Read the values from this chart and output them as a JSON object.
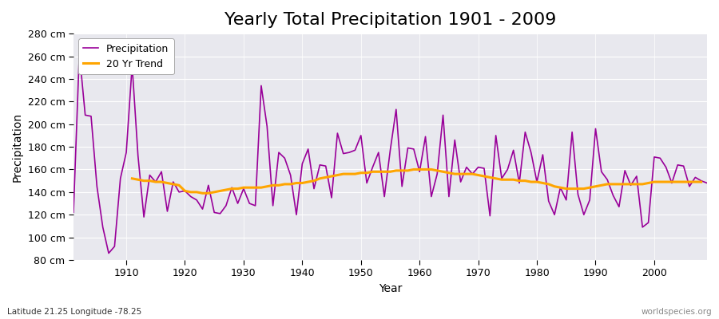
{
  "title": "Yearly Total Precipitation 1901 - 2009",
  "xlabel": "Year",
  "ylabel": "Precipitation",
  "subtitle": "Latitude 21.25 Longitude -78.25",
  "watermark": "worldspecies.org",
  "ylim": [
    80,
    280
  ],
  "yticks": [
    80,
    100,
    120,
    140,
    160,
    180,
    200,
    220,
    240,
    260,
    280
  ],
  "ytick_labels": [
    "80 cm",
    "100 cm",
    "120 cm",
    "140 cm",
    "160 cm",
    "180 cm",
    "200 cm",
    "220 cm",
    "240 cm",
    "260 cm",
    "280 cm"
  ],
  "xlim": [
    1901,
    2009
  ],
  "xticks": [
    1910,
    1920,
    1930,
    1940,
    1950,
    1960,
    1970,
    1980,
    1990,
    2000
  ],
  "precip_color": "#990099",
  "trend_color": "#FFA500",
  "fig_bg_color": "#FFFFFF",
  "plot_bg_color": "#E8E8EE",
  "grid_color": "#FFFFFF",
  "legend_labels": [
    "Precipitation",
    "20 Yr Trend"
  ],
  "title_fontsize": 16,
  "label_fontsize": 10,
  "tick_fontsize": 9,
  "years": [
    1901,
    1902,
    1903,
    1904,
    1905,
    1906,
    1907,
    1908,
    1909,
    1910,
    1911,
    1912,
    1913,
    1914,
    1915,
    1916,
    1917,
    1918,
    1919,
    1920,
    1921,
    1922,
    1923,
    1924,
    1925,
    1926,
    1927,
    1928,
    1929,
    1930,
    1931,
    1932,
    1933,
    1934,
    1935,
    1936,
    1937,
    1938,
    1939,
    1940,
    1941,
    1942,
    1943,
    1944,
    1945,
    1946,
    1947,
    1948,
    1949,
    1950,
    1951,
    1952,
    1953,
    1954,
    1955,
    1956,
    1957,
    1958,
    1959,
    1960,
    1961,
    1962,
    1963,
    1964,
    1965,
    1966,
    1967,
    1968,
    1969,
    1970,
    1971,
    1972,
    1973,
    1974,
    1975,
    1976,
    1977,
    1978,
    1979,
    1980,
    1981,
    1982,
    1983,
    1984,
    1985,
    1986,
    1987,
    1988,
    1989,
    1990,
    1991,
    1992,
    1993,
    1994,
    1995,
    1996,
    1997,
    1998,
    1999,
    2000,
    2001,
    2002,
    2003,
    2004,
    2005,
    2006,
    2007,
    2008,
    2009
  ],
  "precipitation": [
    122,
    263,
    208,
    207,
    145,
    109,
    86,
    92,
    152,
    175,
    252,
    172,
    118,
    155,
    149,
    158,
    123,
    149,
    140,
    141,
    136,
    133,
    125,
    146,
    122,
    121,
    128,
    144,
    130,
    143,
    130,
    128,
    234,
    198,
    128,
    175,
    170,
    155,
    120,
    165,
    178,
    143,
    164,
    163,
    135,
    192,
    174,
    175,
    177,
    190,
    148,
    162,
    175,
    136,
    177,
    213,
    145,
    179,
    178,
    158,
    189,
    136,
    156,
    208,
    136,
    186,
    149,
    162,
    156,
    162,
    161,
    119,
    190,
    152,
    160,
    177,
    148,
    193,
    175,
    149,
    173,
    132,
    120,
    144,
    133,
    193,
    138,
    120,
    133,
    196,
    158,
    151,
    137,
    127,
    159,
    146,
    154,
    109,
    113,
    171,
    170,
    162,
    148,
    164,
    163,
    145,
    153,
    150,
    148
  ],
  "trend": [
    null,
    null,
    null,
    null,
    null,
    null,
    null,
    null,
    null,
    null,
    152,
    151,
    150,
    150,
    149,
    149,
    148,
    147,
    146,
    141,
    140,
    140,
    139,
    139,
    140,
    141,
    142,
    143,
    143,
    144,
    144,
    144,
    144,
    145,
    146,
    146,
    147,
    147,
    148,
    148,
    149,
    150,
    152,
    153,
    154,
    155,
    156,
    156,
    156,
    157,
    157,
    158,
    158,
    158,
    158,
    159,
    159,
    159,
    160,
    160,
    160,
    160,
    159,
    158,
    157,
    156,
    156,
    156,
    156,
    155,
    154,
    153,
    152,
    151,
    151,
    151,
    150,
    150,
    149,
    149,
    148,
    147,
    145,
    144,
    143,
    143,
    143,
    143,
    144,
    145,
    146,
    147,
    147,
    147,
    147,
    147,
    147,
    147,
    148,
    149,
    149,
    149,
    149,
    149,
    149,
    149,
    149,
    149,
    null
  ]
}
